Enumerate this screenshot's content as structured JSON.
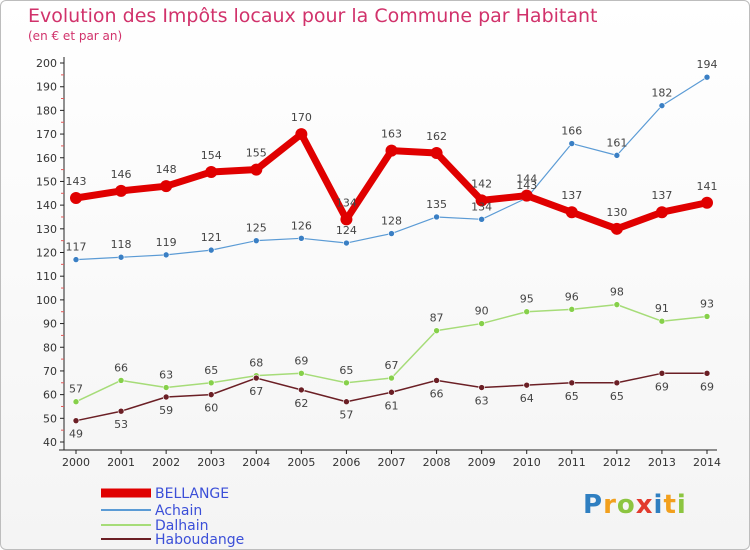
{
  "title": "Evolution des Impôts locaux pour la Commune par Habitant",
  "subtitle": "(en € et par an)",
  "logo": "Proxiti",
  "logo_letters": [
    {
      "ch": "P",
      "color": "#2f7fc1"
    },
    {
      "ch": "r",
      "color": "#f2a01e"
    },
    {
      "ch": "o",
      "color": "#8cc540"
    },
    {
      "ch": "x",
      "color": "#e23b2e"
    },
    {
      "ch": "i",
      "color": "#2f7fc1"
    },
    {
      "ch": "t",
      "color": "#f2a01e"
    },
    {
      "ch": "i",
      "color": "#8cc540"
    }
  ],
  "chart_data": {
    "type": "line",
    "x": [
      "2000",
      "2001",
      "2002",
      "2003",
      "2004",
      "2005",
      "2006",
      "2007",
      "2008",
      "2009",
      "2010",
      "2011",
      "2012",
      "2013",
      "2014"
    ],
    "ylim": [
      40,
      200
    ],
    "yticks": [
      40,
      50,
      60,
      70,
      80,
      90,
      100,
      110,
      120,
      130,
      140,
      150,
      160,
      170,
      180,
      190,
      200
    ],
    "grid": false,
    "legend_position": "bottom-left",
    "series": [
      {
        "name": "BELLANGE",
        "color": "#e00000",
        "marker_color": "#e00000",
        "width": 7,
        "marker_r": 6,
        "values": [
          143,
          146,
          148,
          154,
          155,
          170,
          134,
          163,
          162,
          142,
          144,
          137,
          130,
          137,
          141
        ]
      },
      {
        "name": "Achain",
        "color": "#5b9bd5",
        "marker_color": "#3a7fc4",
        "width": 1.2,
        "marker_r": 3,
        "values": [
          117,
          118,
          119,
          121,
          125,
          126,
          124,
          128,
          135,
          134,
          143,
          166,
          161,
          182,
          194
        ]
      },
      {
        "name": "Dalhain",
        "color": "#a6dc78",
        "marker_color": "#86d04a",
        "width": 1.5,
        "marker_r": 3,
        "values": [
          57,
          66,
          63,
          65,
          68,
          69,
          65,
          67,
          87,
          90,
          95,
          96,
          98,
          91,
          93
        ]
      },
      {
        "name": "Haboudange",
        "color": "#6b1f25",
        "marker_color": "#6b1f25",
        "width": 1.5,
        "marker_r": 3,
        "values": [
          49,
          53,
          59,
          60,
          67,
          62,
          57,
          61,
          66,
          63,
          64,
          65,
          65,
          69,
          69
        ]
      }
    ]
  }
}
